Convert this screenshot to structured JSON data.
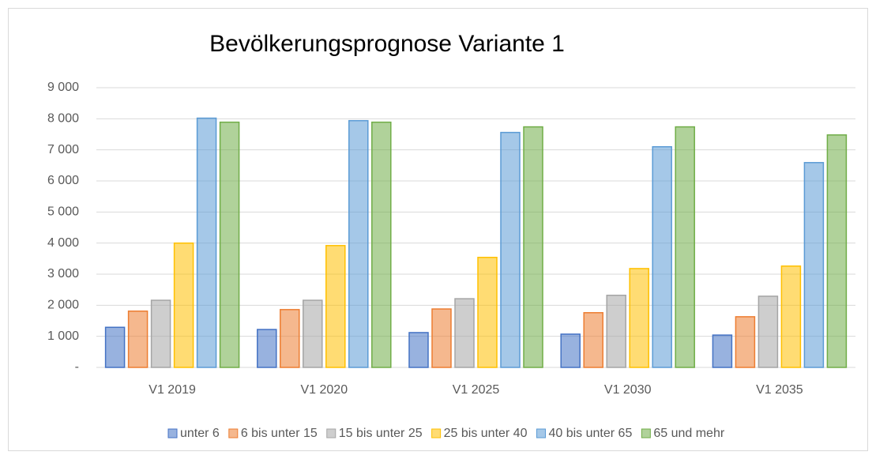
{
  "chart_data": {
    "type": "bar",
    "title": "Bevölkerungsprognose Variante 1",
    "categories": [
      "V1 2019",
      "V1 2020",
      "V1 2025",
      "V1 2030",
      "V1 2035"
    ],
    "series": [
      {
        "name": "unter 6",
        "color": "#4472c4",
        "values": [
          1290,
          1220,
          1120,
          1070,
          1040
        ]
      },
      {
        "name": "6 bis unter 15",
        "color": "#ed7d31",
        "values": [
          1810,
          1860,
          1880,
          1760,
          1630
        ]
      },
      {
        "name": "15 bis unter 25",
        "color": "#a5a5a5",
        "values": [
          2160,
          2160,
          2210,
          2320,
          2290
        ]
      },
      {
        "name": "25 bis unter 40",
        "color": "#ffc000",
        "values": [
          4000,
          3920,
          3540,
          3180,
          3260
        ]
      },
      {
        "name": "40 bis unter 65",
        "color": "#5b9bd5",
        "values": [
          8020,
          7940,
          7560,
          7100,
          6590
        ]
      },
      {
        "name": "65 und mehr",
        "color": "#70ad47",
        "values": [
          7890,
          7890,
          7740,
          7740,
          7480
        ]
      }
    ],
    "ylim": [
      0,
      9000
    ],
    "yticks": [
      {
        "value": 0,
        "label": "-"
      },
      {
        "value": 1000,
        "label": "1 000"
      },
      {
        "value": 2000,
        "label": "2 000"
      },
      {
        "value": 3000,
        "label": "3 000"
      },
      {
        "value": 4000,
        "label": "4 000"
      },
      {
        "value": 5000,
        "label": "5 000"
      },
      {
        "value": 6000,
        "label": "6 000"
      },
      {
        "value": 7000,
        "label": "7 000"
      },
      {
        "value": 8000,
        "label": "8 000"
      },
      {
        "value": 9000,
        "label": "9 000"
      }
    ],
    "grid": true,
    "legend": "bottom"
  }
}
